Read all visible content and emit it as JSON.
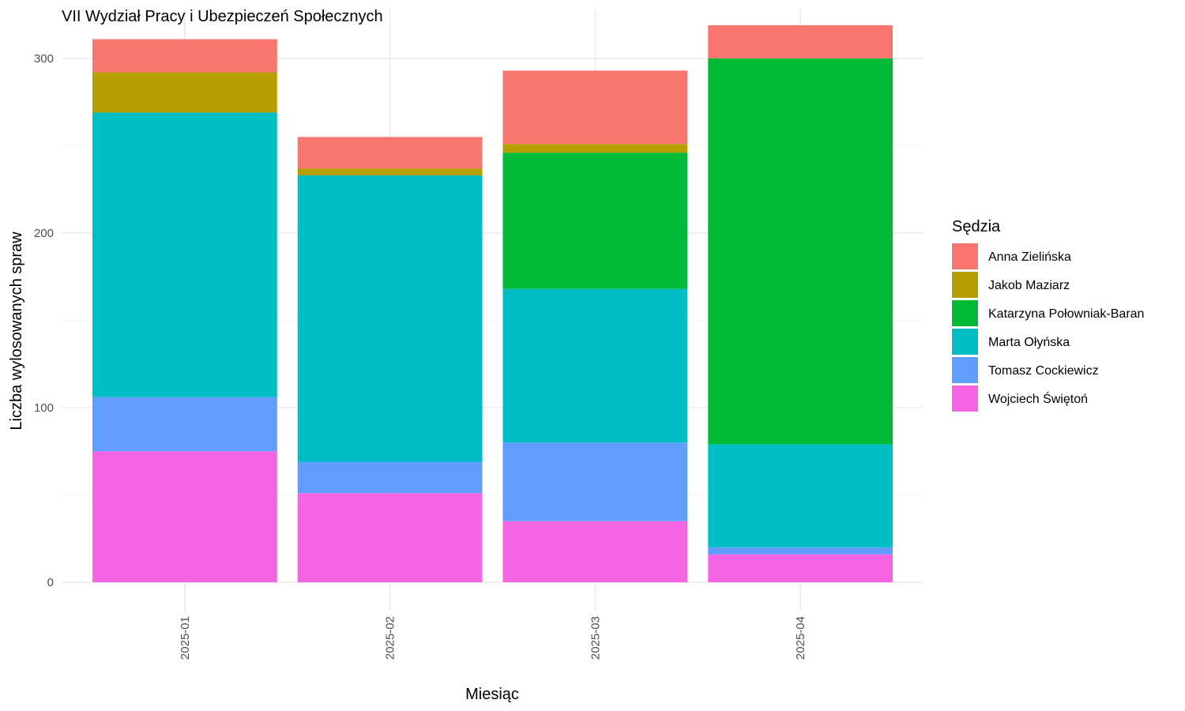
{
  "chart_data": {
    "type": "bar",
    "stacked": true,
    "title": "VII Wydział Pracy i Ubezpieczeń Społecznych",
    "xlabel": "Miesiąc",
    "ylabel": "Liczba wylosowanych spraw",
    "categories": [
      "2025-01",
      "2025-02",
      "2025-03",
      "2025-04"
    ],
    "ylim": [
      -14,
      328
    ],
    "yticks": [
      0,
      100,
      200,
      300
    ],
    "grid": true,
    "legend": {
      "title": "Sędzia",
      "position": "right"
    },
    "series": [
      {
        "name": "Wojciech Świętoń",
        "color": "#F564E3",
        "values": [
          75,
          51,
          35,
          16
        ]
      },
      {
        "name": "Tomasz Cockiewicz",
        "color": "#619CFF",
        "values": [
          31,
          18,
          45,
          4
        ]
      },
      {
        "name": "Marta Ołyńska",
        "color": "#00BFC4",
        "values": [
          163,
          164,
          88,
          59
        ]
      },
      {
        "name": "Katarzyna Połowniak-Baran",
        "color": "#00BA38",
        "values": [
          0,
          0,
          78,
          221
        ]
      },
      {
        "name": "Jakob Maziarz",
        "color": "#B79F00",
        "values": [
          23,
          4,
          5,
          0
        ]
      },
      {
        "name": "Anna Zielińska",
        "color": "#F8766D",
        "values": [
          19,
          18,
          42,
          19
        ]
      }
    ],
    "legend_order": [
      "Anna Zielińska",
      "Jakob Maziarz",
      "Katarzyna Połowniak-Baran",
      "Marta Ołyńska",
      "Tomasz Cockiewicz",
      "Wojciech Świętoń"
    ]
  }
}
